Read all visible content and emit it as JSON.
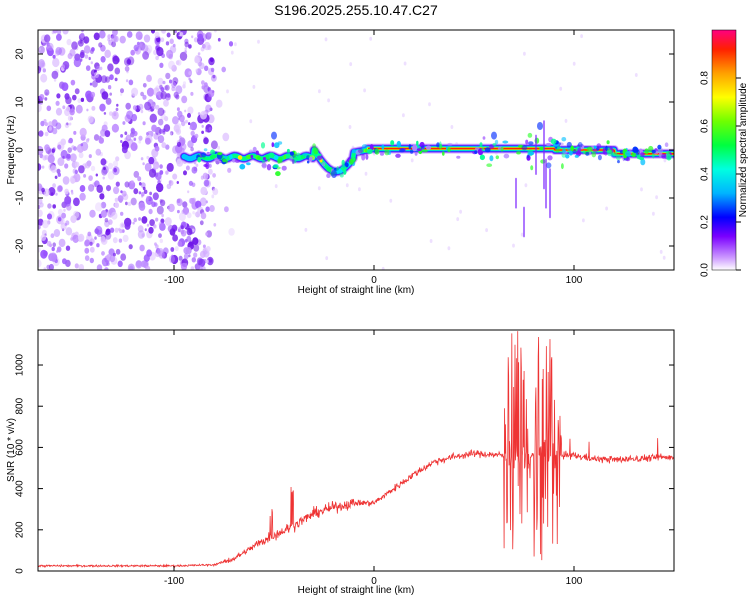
{
  "title": "S196.2025.255.10.47.C27",
  "chart_data": [
    {
      "type": "heatmap",
      "name": "spectrogram",
      "xlabel": "Height of straight line (km)",
      "ylabel": "Frequency (Hz)",
      "xlim": [
        -168,
        150
      ],
      "ylim": [
        -25,
        25
      ],
      "xticks": [
        -100,
        0,
        100
      ],
      "yticks": [
        -20,
        -10,
        0,
        10,
        20
      ],
      "colorbar": {
        "label": "Normalized spectral amplitude",
        "range": [
          0,
          1
        ],
        "ticks": [
          "0.0",
          "0.2",
          "0.4",
          "0.6",
          "0.8"
        ]
      },
      "features": [
        {
          "region": "noise",
          "x": [
            -168,
            -80
          ],
          "y": [
            -25,
            25
          ],
          "amplitude": 0.1
        },
        {
          "region": "carrier",
          "x": [
            -95,
            150
          ],
          "center_hz": 0,
          "amplitude": 1.0
        }
      ],
      "carrier_dips": [
        {
          "x": -20,
          "hz": -5
        },
        {
          "x": -50,
          "hz": 3
        },
        {
          "x": 60,
          "hz": 3
        },
        {
          "x": 83,
          "hz": 5
        }
      ]
    },
    {
      "type": "line",
      "name": "snr",
      "xlabel": "Height of straight line (km)",
      "ylabel": "SNR (10 * v/v)",
      "xlim": [
        -168,
        150
      ],
      "ylim": [
        0,
        1170
      ],
      "xticks": [
        -100,
        0,
        100
      ],
      "yticks": [
        0,
        200,
        400,
        600,
        800,
        1000
      ],
      "color": "#ee3333",
      "series": [
        {
          "name": "SNR",
          "x": [
            -168,
            -100,
            -80,
            -70,
            -55,
            -40,
            -30,
            -20,
            -10,
            0,
            10,
            20,
            30,
            40,
            50,
            60,
            65,
            70,
            75,
            80,
            85,
            90,
            95,
            100,
            110,
            120,
            130,
            140,
            150
          ],
          "y": [
            25,
            25,
            30,
            60,
            150,
            220,
            280,
            310,
            330,
            330,
            400,
            470,
            530,
            555,
            570,
            565,
            560,
            560,
            560,
            560,
            560,
            560,
            560,
            560,
            545,
            540,
            545,
            550,
            555
          ]
        }
      ],
      "volatile_regions": [
        {
          "x": [
            65,
            78
          ],
          "ymin": 100,
          "ymax": 1170
        },
        {
          "x": [
            80,
            93
          ],
          "ymin": 50,
          "ymax": 1140
        }
      ]
    }
  ]
}
